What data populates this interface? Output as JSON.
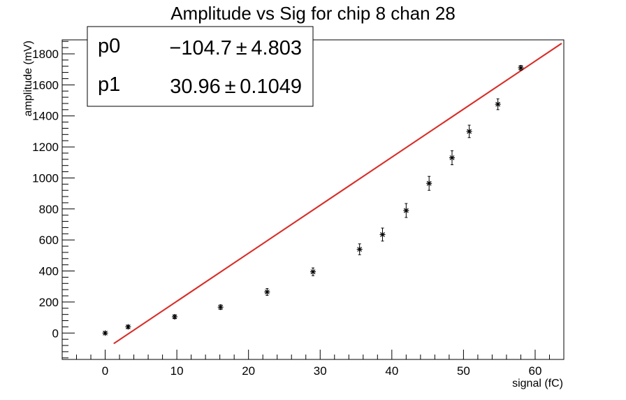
{
  "chart_data": {
    "type": "scatter",
    "title": "Amplitude vs Sig for chip 8 chan 28",
    "xlabel": "signal (fC)",
    "ylabel": "amplitude (mV)",
    "xlim": [
      -6,
      64
    ],
    "ylim": [
      -170,
      1890
    ],
    "x_ticks": [
      0,
      10,
      20,
      30,
      40,
      50,
      60
    ],
    "y_ticks": [
      0,
      200,
      400,
      600,
      800,
      1000,
      1200,
      1400,
      1600,
      1800
    ],
    "grid": false,
    "points": [
      {
        "x": 0.0,
        "y": 0,
        "err": 8
      },
      {
        "x": 3.2,
        "y": 40,
        "err": 10
      },
      {
        "x": 9.7,
        "y": 105,
        "err": 12
      },
      {
        "x": 16.1,
        "y": 167,
        "err": 15
      },
      {
        "x": 22.6,
        "y": 265,
        "err": 22
      },
      {
        "x": 29.0,
        "y": 395,
        "err": 25
      },
      {
        "x": 35.5,
        "y": 540,
        "err": 35
      },
      {
        "x": 38.7,
        "y": 635,
        "err": 42
      },
      {
        "x": 42.0,
        "y": 790,
        "err": 45
      },
      {
        "x": 45.2,
        "y": 965,
        "err": 45
      },
      {
        "x": 48.4,
        "y": 1130,
        "err": 45
      },
      {
        "x": 50.8,
        "y": 1300,
        "err": 40
      },
      {
        "x": 54.8,
        "y": 1475,
        "err": 35
      },
      {
        "x": 58.0,
        "y": 1710,
        "err": 15
      }
    ],
    "fit": {
      "color": "#e8221b",
      "p0": -104.7,
      "p1": 30.96,
      "x_range": [
        1.2,
        63.7
      ]
    },
    "stats_box": {
      "rows": [
        {
          "name": "p0",
          "value": "−104.7 ± 4.803"
        },
        {
          "name": "p1",
          "value": "30.96 ± 0.1049"
        }
      ]
    }
  }
}
